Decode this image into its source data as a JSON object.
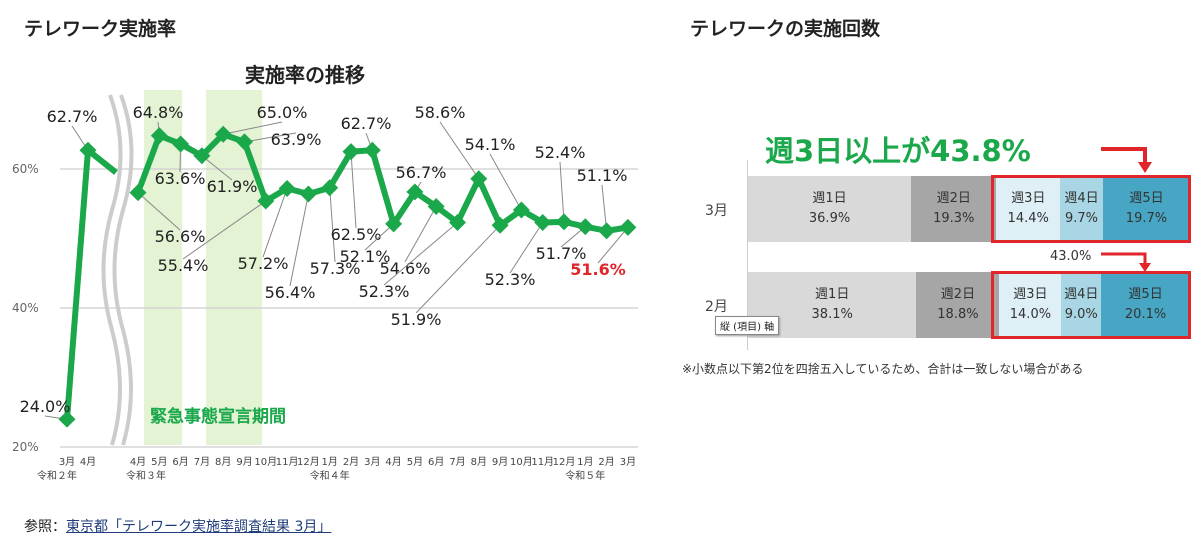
{
  "left_heading": "テレワーク実施率",
  "right_heading": "テレワークの実施回数",
  "reference": {
    "prefix": "参照：",
    "link": "東京都「テレワーク実施率調査結果 3月」"
  },
  "chart_data": [
    {
      "type": "line",
      "title": "実施率の推移",
      "ylabel": "",
      "xlabel": "",
      "ylim": [
        20,
        70
      ],
      "yticks": [
        "20%",
        "40%",
        "60%"
      ],
      "ytick_values": [
        20,
        40,
        60
      ],
      "grid": true,
      "annotation": "緊急事態宣言期間",
      "highlight_color": "#e3f3d3",
      "line_color": "#1aa84b",
      "x": [
        "3月",
        "4月",
        "4月",
        "5月",
        "6月",
        "7月",
        "8月",
        "9月",
        "10月",
        "11月",
        "12月",
        "1月",
        "2月",
        "3月",
        "4月",
        "5月",
        "6月",
        "7月",
        "8月",
        "9月",
        "10月",
        "11月",
        "12月",
        "1月",
        "2月",
        "3月"
      ],
      "year_labels": [
        "令和２年",
        "令和３年",
        "令和４年",
        "令和５年"
      ],
      "values": [
        24.0,
        62.7,
        56.6,
        64.8,
        63.6,
        61.9,
        65.0,
        63.9,
        55.4,
        57.2,
        56.4,
        57.3,
        62.5,
        62.7,
        52.1,
        56.7,
        54.6,
        52.3,
        58.6,
        51.9,
        54.1,
        52.3,
        52.4,
        51.7,
        51.1,
        51.6
      ],
      "labels": [
        "24.0%",
        "62.7%",
        "56.6%",
        "64.8%",
        "63.6%",
        "61.9%",
        "65.0%",
        "63.9%",
        "55.4%",
        "57.2%",
        "56.4%",
        "57.3%",
        "62.5%",
        "62.7%",
        "52.1%",
        "56.7%",
        "54.6%",
        "52.3%",
        "58.6%",
        "51.9%",
        "54.1%",
        "52.3%",
        "52.4%",
        "51.7%",
        "51.1%",
        "51.6%"
      ],
      "highlight_label_color": "#e0262b"
    },
    {
      "type": "bar",
      "stacked": true,
      "orientation": "horizontal",
      "title": "週3日以上が43.8%",
      "categories": [
        "3月",
        "2月"
      ],
      "series": [
        {
          "name": "週1日",
          "values": [
            36.9,
            38.1
          ],
          "color": "#d9d9d9"
        },
        {
          "name": "週2日",
          "values": [
            19.3,
            18.8
          ],
          "color": "#a6a6a6"
        },
        {
          "name": "週3日",
          "values": [
            14.4,
            14.0
          ],
          "color": "#deeff6"
        },
        {
          "name": "週4日",
          "values": [
            9.7,
            9.0
          ],
          "color": "#a9d6e5"
        },
        {
          "name": "週5日",
          "values": [
            19.7,
            20.1
          ],
          "color": "#46a6c4"
        }
      ],
      "value_labels": [
        [
          "36.9%",
          "19.3%",
          "14.4%",
          "9.7%",
          "19.7%"
        ],
        [
          "38.1%",
          "18.8%",
          "14.0%",
          "9.0%",
          "20.1%"
        ]
      ],
      "previous_total": "43.0%",
      "axis_tooltip": "縦 (項目) 軸",
      "footnote": "※小数点以下第2位を四捨五入しているため、合計は一致しない場合がある"
    }
  ]
}
